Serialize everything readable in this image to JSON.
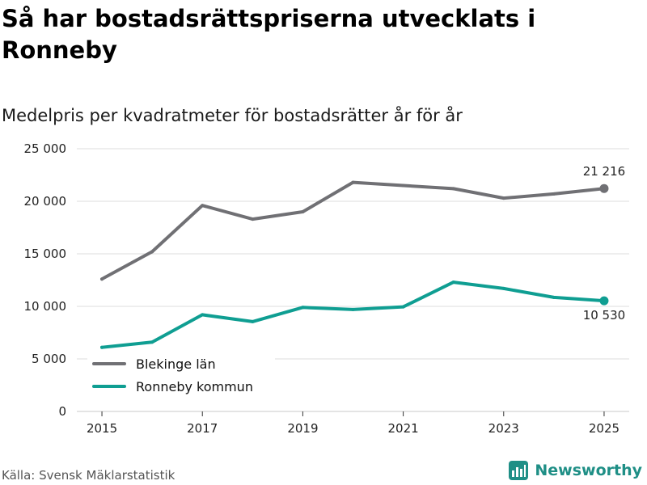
{
  "title": "Så har bostadsrättspriserna utvecklats i Ronneby",
  "subtitle": "Medelpris per kvadratmeter för bostadsrätter år för år",
  "source": "Källa: Svensk Mäklarstatistik",
  "brand": "Newsworthy",
  "brand_icon": "bar-chart-logo-icon",
  "colors": {
    "blekinge": "#707074",
    "ronneby": "#0f9e92",
    "grid": "#dedede",
    "brand": "#1f8f86"
  },
  "chart_data": {
    "type": "line",
    "title": "Så har bostadsrättspriserna utvecklats i Ronneby",
    "subtitle": "Medelpris per kvadratmeter för bostadsrätter år för år",
    "xlabel": "",
    "ylabel": "",
    "x": [
      2015,
      2016,
      2017,
      2018,
      2019,
      2020,
      2021,
      2022,
      2023,
      2024,
      2025
    ],
    "xticks": [
      "2015",
      "2017",
      "2019",
      "2021",
      "2023",
      "2025"
    ],
    "yticks": [
      0,
      5000,
      10000,
      15000,
      20000,
      25000
    ],
    "ytick_labels": [
      "0",
      "5 000",
      "10 000",
      "15 000",
      "20 000",
      "25 000"
    ],
    "ylim": [
      0,
      25000
    ],
    "xlim": [
      2014.5,
      2025.5
    ],
    "grid": true,
    "legend": "bottom-left",
    "series": [
      {
        "name": "Blekinge län",
        "color": "#707074",
        "values": [
          12600,
          15200,
          19600,
          18300,
          19000,
          21800,
          21500,
          21200,
          20300,
          20700,
          21216
        ],
        "end_label": "21 216",
        "end_label_position": "above"
      },
      {
        "name": "Ronneby kommun",
        "color": "#0f9e92",
        "values": [
          6100,
          6600,
          9200,
          8550,
          9900,
          9700,
          9950,
          12300,
          11700,
          10850,
          10530
        ],
        "end_label": "10 530",
        "end_label_position": "below"
      }
    ]
  }
}
